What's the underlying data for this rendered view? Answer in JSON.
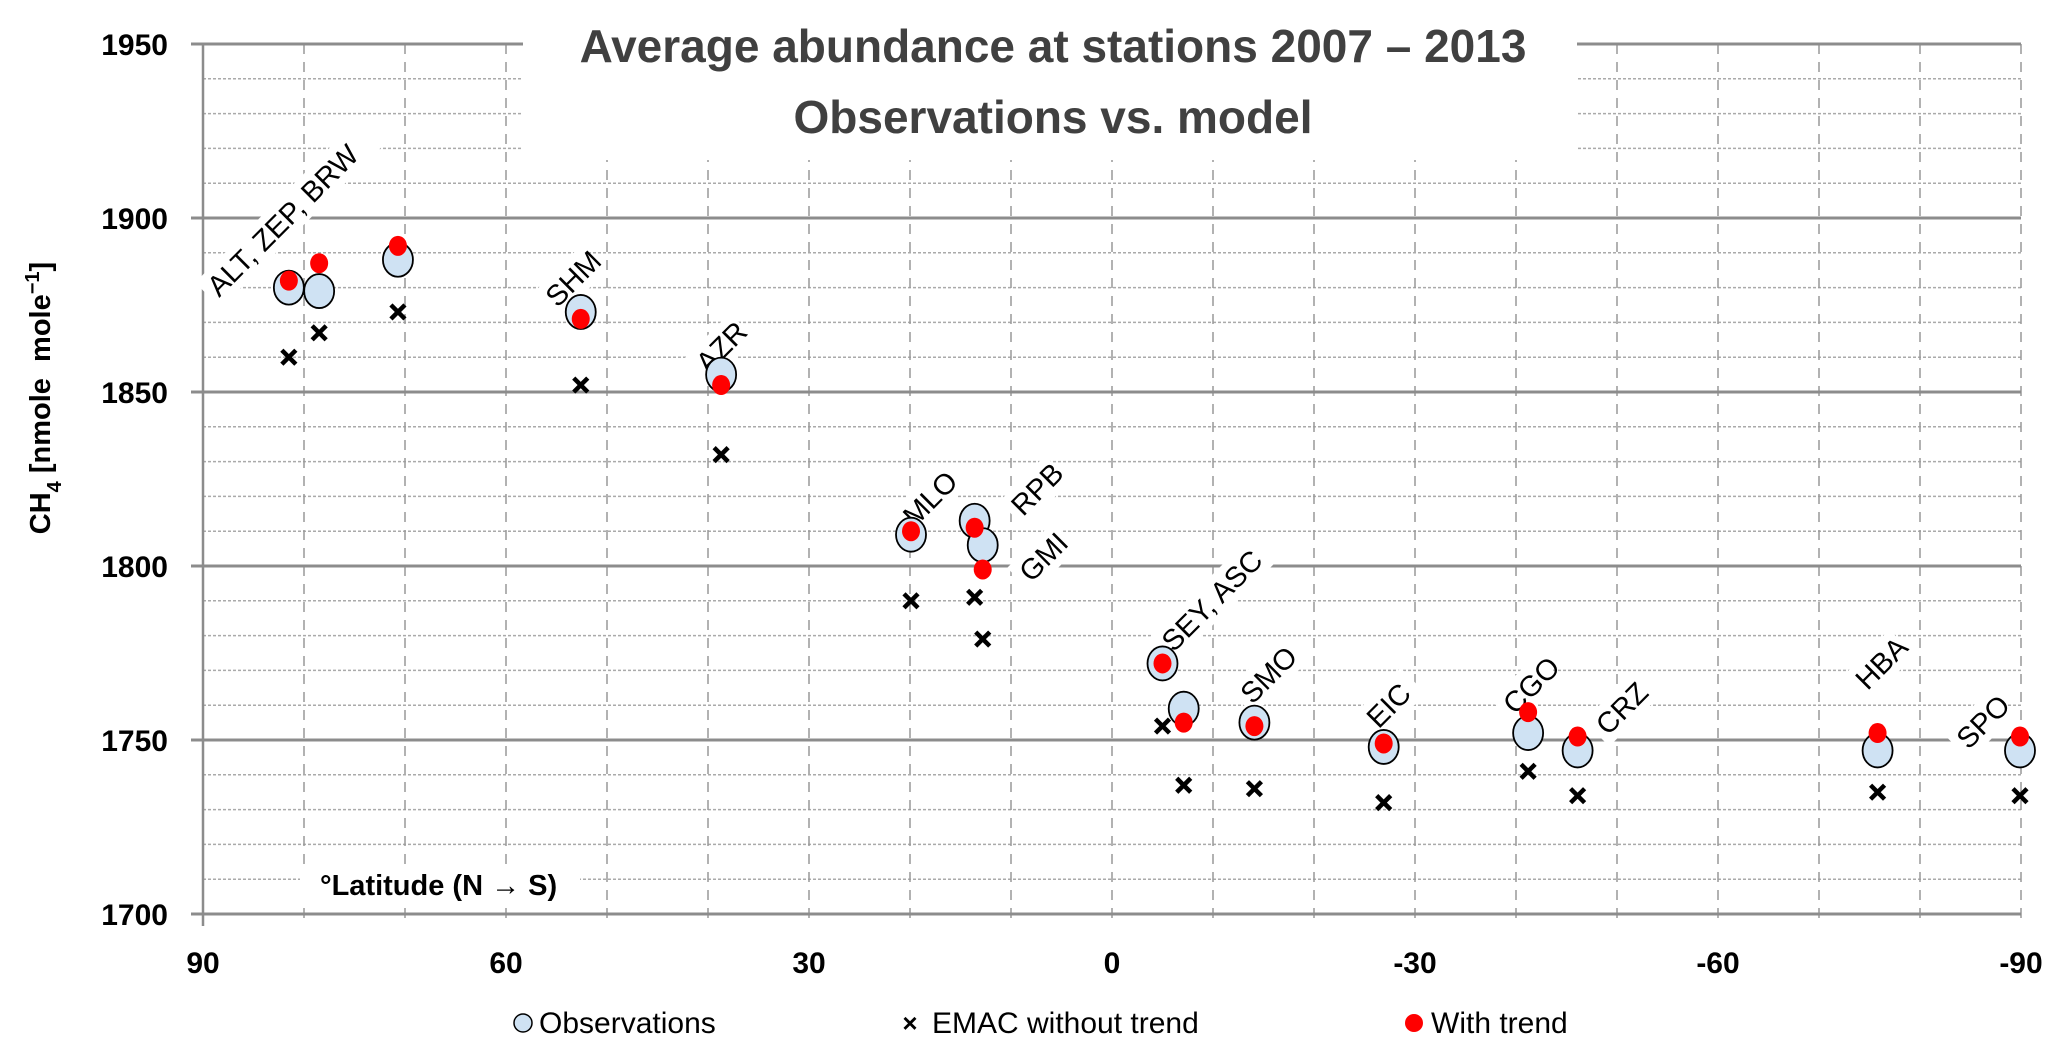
{
  "chart_data": {
    "type": "scatter",
    "title": [
      "Average abundance at stations 2007 – 2013",
      "Observations vs. model"
    ],
    "xlabel": "°Latitude (N → S)",
    "ylabel": {
      "main": "CH",
      "sub": "4",
      "unit": " [nmole  mole",
      "sup": "−1",
      "close": "]"
    },
    "xlim": [
      90,
      -90
    ],
    "ylim": [
      1700,
      1950
    ],
    "x_ticks": [
      90,
      60,
      30,
      0,
      -30,
      -60,
      -90
    ],
    "y_ticks": [
      1700,
      1750,
      1800,
      1850,
      1900,
      1950
    ],
    "grid": {
      "major_y": 50,
      "minor_y": 10,
      "x": 10
    },
    "legend_position": "bottom",
    "colors": {
      "observations_fill": "#cfe2f3",
      "observations_edge": "#000000",
      "model_no_trend": "#000000",
      "model_with_trend": "#ff0000"
    },
    "series": [
      {
        "name": "Observations",
        "marker": "circle"
      },
      {
        "name": "EMAC without trend",
        "marker": "x"
      },
      {
        "name": "With trend",
        "marker": "dot"
      }
    ],
    "stations": [
      {
        "lat": 81.5,
        "obs": 1880,
        "no_trend": 1860,
        "with_trend": 1882
      },
      {
        "lat": 78.5,
        "obs": 1879,
        "no_trend": 1867,
        "with_trend": 1887
      },
      {
        "lat": 70.7,
        "obs": 1888,
        "no_trend": 1873,
        "with_trend": 1892
      },
      {
        "lat": 52.6,
        "obs": 1873,
        "no_trend": 1852,
        "with_trend": 1871
      },
      {
        "lat": 38.7,
        "obs": 1855,
        "no_trend": 1832,
        "with_trend": 1852
      },
      {
        "lat": 19.9,
        "obs": 1809,
        "no_trend": 1790,
        "with_trend": 1810
      },
      {
        "lat": 13.6,
        "obs": 1813,
        "no_trend": 1791,
        "with_trend": 1811
      },
      {
        "lat": 12.8,
        "obs": 1806,
        "no_trend": 1779,
        "with_trend": 1799
      },
      {
        "lat": -5.0,
        "obs": 1772,
        "no_trend": 1754,
        "with_trend": 1772
      },
      {
        "lat": -7.1,
        "obs": 1759,
        "no_trend": 1737,
        "with_trend": 1755
      },
      {
        "lat": -14.1,
        "obs": 1755,
        "no_trend": 1736,
        "with_trend": 1754
      },
      {
        "lat": -26.9,
        "obs": 1748,
        "no_trend": 1732,
        "with_trend": 1749
      },
      {
        "lat": -41.2,
        "obs": 1752,
        "no_trend": 1741,
        "with_trend": 1758
      },
      {
        "lat": -46.1,
        "obs": 1747,
        "no_trend": 1734,
        "with_trend": 1751
      },
      {
        "lat": -75.8,
        "obs": 1747,
        "no_trend": 1735,
        "with_trend": 1752
      },
      {
        "lat": -89.9,
        "obs": 1747,
        "no_trend": 1734,
        "with_trend": 1751
      }
    ],
    "annotations": [
      {
        "text": "ALT, ZEP, BRW",
        "lat": 88.4,
        "value": 1877
      },
      {
        "text": "SHM",
        "lat": 54.9,
        "value": 1874
      },
      {
        "text": "AZR",
        "lat": 40.0,
        "value": 1855
      },
      {
        "text": "MLO",
        "lat": 19.5,
        "value": 1811
      },
      {
        "text": "RPB",
        "lat": 8.8,
        "value": 1814
      },
      {
        "text": "GMI",
        "lat": 8.0,
        "value": 1795
      },
      {
        "text": "SEY, ASC",
        "lat": -6.1,
        "value": 1775
      },
      {
        "text": "SMO",
        "lat": -13.9,
        "value": 1760
      },
      {
        "text": "EIC",
        "lat": -26.4,
        "value": 1753
      },
      {
        "text": "CGO",
        "lat": -39.9,
        "value": 1757
      },
      {
        "text": "CRZ",
        "lat": -49.1,
        "value": 1751
      },
      {
        "text": "HBA",
        "lat": -74.8,
        "value": 1764
      },
      {
        "text": "SPO",
        "lat": -84.8,
        "value": 1747
      }
    ]
  }
}
